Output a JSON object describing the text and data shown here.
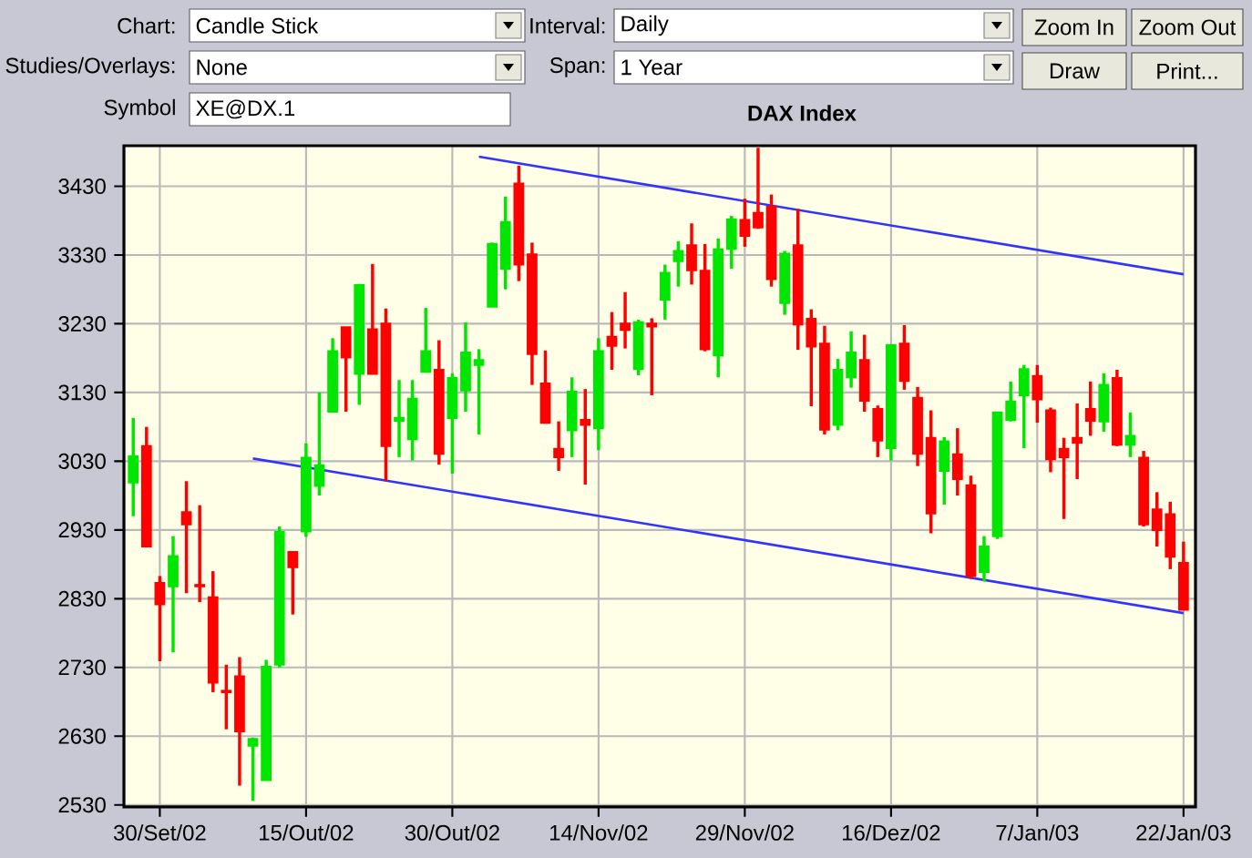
{
  "chart_data": {
    "type": "candlestick",
    "title": "DAX Index",
    "annotations": [
      "Chart:",
      "Candle Stick",
      "Interval:",
      "Daily",
      "Zoom In",
      "Zoom Out",
      "Studies/Overlays:",
      "None",
      "Span:",
      "1 Year",
      "Draw",
      "Print...",
      "Symbol",
      "XE@DX.1"
    ],
    "categories": [
      null,
      null,
      "30/Set/02",
      null,
      null,
      null,
      null,
      null,
      null,
      null,
      null,
      null,
      null,
      "15/Out/02",
      null,
      null,
      null,
      null,
      null,
      null,
      null,
      null,
      null,
      null,
      "30/Out/02",
      null,
      null,
      null,
      null,
      null,
      null,
      null,
      null,
      null,
      null,
      "14/Nov/02",
      null,
      null,
      null,
      null,
      null,
      null,
      null,
      null,
      null,
      null,
      "29/Nov/02",
      null,
      null,
      null,
      null,
      null,
      null,
      null,
      null,
      null,
      null,
      "16/Dez/02",
      null,
      null,
      null,
      null,
      null,
      null,
      null,
      null,
      null,
      null,
      "7/Jan/03",
      null,
      null,
      null,
      null,
      null,
      null,
      null,
      null,
      null,
      null,
      "22/Jan/03"
    ],
    "ohlc": [
      [
        2999,
        3093,
        2950,
        3037
      ],
      [
        3052,
        3080,
        2906,
        2906
      ],
      [
        2853,
        2863,
        2739,
        2822
      ],
      [
        2848,
        2921,
        2752,
        2892
      ],
      [
        2956,
        3001,
        2838,
        2938
      ],
      [
        2850,
        2966,
        2825,
        2848
      ],
      [
        2832,
        2870,
        2694,
        2708
      ],
      [
        2696,
        2734,
        2640,
        2694
      ],
      [
        2717,
        2745,
        2558,
        2637
      ],
      [
        2616,
        2628,
        2536,
        2626
      ],
      [
        2566,
        2741,
        2566,
        2731
      ],
      [
        2734,
        2935,
        2730,
        2927
      ],
      [
        2898,
        2898,
        2807,
        2876
      ],
      [
        2928,
        3056,
        2920,
        3035
      ],
      [
        2994,
        3130,
        2980,
        3024
      ],
      [
        3102,
        3209,
        3102,
        3190
      ],
      [
        3225,
        3225,
        3102,
        3181
      ],
      [
        3157,
        3288,
        3112,
        3286
      ],
      [
        3222,
        3317,
        3157,
        3157
      ],
      [
        3230,
        3252,
        3001,
        3052
      ],
      [
        3089,
        3148,
        3036,
        3093
      ],
      [
        3062,
        3148,
        3031,
        3121
      ],
      [
        3160,
        3253,
        3160,
        3190
      ],
      [
        3163,
        3206,
        3025,
        3041
      ],
      [
        3093,
        3158,
        3012,
        3151
      ],
      [
        3133,
        3232,
        3102,
        3188
      ],
      [
        3170,
        3193,
        3069,
        3177
      ],
      [
        3255,
        3348,
        3255,
        3346
      ],
      [
        3310,
        3415,
        3280,
        3378
      ],
      [
        3434,
        3460,
        3292,
        3316
      ],
      [
        3331,
        3348,
        3141,
        3186
      ],
      [
        3143,
        3191,
        3086,
        3086
      ],
      [
        3048,
        3088,
        3016,
        3036
      ],
      [
        3075,
        3152,
        3036,
        3131
      ],
      [
        3090,
        3135,
        2996,
        3083
      ],
      [
        3078,
        3209,
        3046,
        3190
      ],
      [
        3211,
        3247,
        3163,
        3198
      ],
      [
        3230,
        3276,
        3194,
        3221
      ],
      [
        3164,
        3236,
        3155,
        3232
      ],
      [
        3230,
        3238,
        3126,
        3226
      ],
      [
        3265,
        3316,
        3236,
        3304
      ],
      [
        3321,
        3350,
        3284,
        3336
      ],
      [
        3344,
        3376,
        3287,
        3308
      ],
      [
        3307,
        3346,
        3190,
        3193
      ],
      [
        3184,
        3354,
        3152,
        3338
      ],
      [
        3339,
        3387,
        3310,
        3382
      ],
      [
        3381,
        3412,
        3342,
        3358
      ],
      [
        3391,
        3486,
        3368,
        3370
      ],
      [
        3400,
        3418,
        3284,
        3295
      ],
      [
        3260,
        3336,
        3243,
        3332
      ],
      [
        3344,
        3397,
        3192,
        3229
      ],
      [
        3237,
        3251,
        3110,
        3197
      ],
      [
        3201,
        3227,
        3069,
        3076
      ],
      [
        3083,
        3179,
        3075,
        3163
      ],
      [
        3152,
        3219,
        3137,
        3188
      ],
      [
        3177,
        3214,
        3102,
        3118
      ],
      [
        3106,
        3111,
        3036,
        3060
      ],
      [
        3049,
        3199,
        3031,
        3199
      ],
      [
        3201,
        3228,
        3134,
        3147
      ],
      [
        3122,
        3138,
        3023,
        3041
      ],
      [
        3064,
        3104,
        2925,
        2954
      ],
      [
        3016,
        3065,
        2967,
        3059
      ],
      [
        3040,
        3078,
        2980,
        3004
      ],
      [
        2995,
        3009,
        2859,
        2863
      ],
      [
        2869,
        2921,
        2855,
        2906
      ],
      [
        2921,
        3101,
        2917,
        3101
      ],
      [
        3090,
        3146,
        3088,
        3117
      ],
      [
        3126,
        3170,
        3049,
        3164
      ],
      [
        3154,
        3170,
        3086,
        3120
      ],
      [
        3104,
        3108,
        3014,
        3033
      ],
      [
        3048,
        3064,
        2946,
        3036
      ],
      [
        3064,
        3114,
        3004,
        3057
      ],
      [
        3106,
        3146,
        3067,
        3089
      ],
      [
        3088,
        3158,
        3073,
        3141
      ],
      [
        3151,
        3163,
        3052,
        3054
      ],
      [
        3054,
        3101,
        3036,
        3067
      ],
      [
        3035,
        3045,
        2935,
        2938
      ],
      [
        2960,
        2985,
        2906,
        2930
      ],
      [
        2953,
        2971,
        2873,
        2891
      ],
      [
        2882,
        2913,
        2814,
        2814
      ]
    ],
    "series": [
      {
        "type": "line",
        "color": "#3333ff",
        "values": [
          null,
          null,
          null,
          null,
          null,
          null,
          null,
          null,
          null,
          null,
          null,
          null,
          null,
          null,
          null,
          null,
          null,
          null,
          null,
          null,
          null,
          null,
          null,
          null,
          null,
          null,
          3473,
          null,
          null,
          null,
          null,
          null,
          null,
          null,
          null,
          null,
          null,
          null,
          null,
          null,
          null,
          null,
          null,
          null,
          null,
          null,
          null,
          null,
          null,
          null,
          null,
          null,
          null,
          null,
          null,
          null,
          null,
          null,
          null,
          null,
          null,
          null,
          null,
          null,
          null,
          null,
          null,
          null,
          null,
          null,
          null,
          null,
          null,
          null,
          null,
          null,
          null,
          null,
          null,
          3302
        ]
      },
      {
        "type": "line",
        "color": "#3333ff",
        "values": [
          null,
          null,
          null,
          null,
          null,
          null,
          null,
          null,
          null,
          3034,
          null,
          null,
          null,
          null,
          null,
          null,
          null,
          null,
          null,
          null,
          null,
          null,
          null,
          null,
          null,
          null,
          null,
          null,
          null,
          null,
          null,
          null,
          null,
          null,
          null,
          null,
          null,
          null,
          null,
          null,
          null,
          null,
          null,
          null,
          null,
          null,
          null,
          null,
          null,
          null,
          null,
          null,
          null,
          null,
          null,
          null,
          null,
          null,
          null,
          null,
          null,
          null,
          null,
          null,
          null,
          null,
          null,
          null,
          null,
          null,
          null,
          null,
          null,
          null,
          null,
          null,
          null,
          null,
          null,
          2809
        ]
      }
    ],
    "ylim": [
      2527,
      3489
    ],
    "yticks": [
      2530,
      2630,
      2730,
      2830,
      2930,
      3030,
      3130,
      3230,
      3330,
      3430
    ],
    "grid": true
  }
}
